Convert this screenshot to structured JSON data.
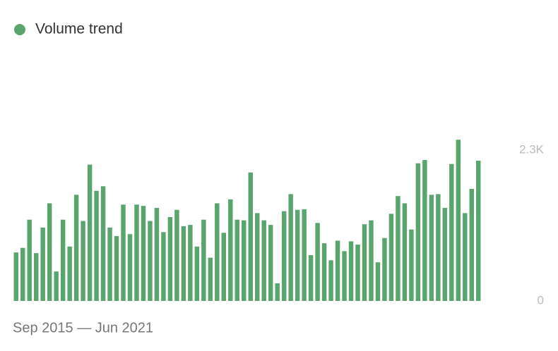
{
  "chart_data": {
    "type": "bar",
    "legend": "Volume trend",
    "color": "#5aa46d",
    "x_range_label": "Sep 2015 — Jun 2021",
    "values": [
      740,
      810,
      1240,
      730,
      1120,
      1490,
      450,
      1240,
      830,
      1620,
      1220,
      2080,
      1680,
      1750,
      1120,
      990,
      1470,
      1020,
      1470,
      1450,
      1220,
      1420,
      1050,
      1280,
      1390,
      1140,
      1160,
      830,
      1240,
      660,
      1490,
      1040,
      1550,
      1240,
      1230,
      1960,
      1340,
      1230,
      1160,
      270,
      1370,
      1630,
      1390,
      1400,
      700,
      1190,
      880,
      620,
      920,
      760,
      910,
      860,
      1170,
      1230,
      590,
      960,
      1330,
      1600,
      1490,
      1090,
      2100,
      2150,
      1620,
      1630,
      1420,
      2090,
      2460,
      1340,
      1710,
      2140
    ],
    "ylim": [
      0,
      2500
    ],
    "yticks": [
      0,
      {
        "value": 2300,
        "label": "2.3K"
      }
    ]
  }
}
